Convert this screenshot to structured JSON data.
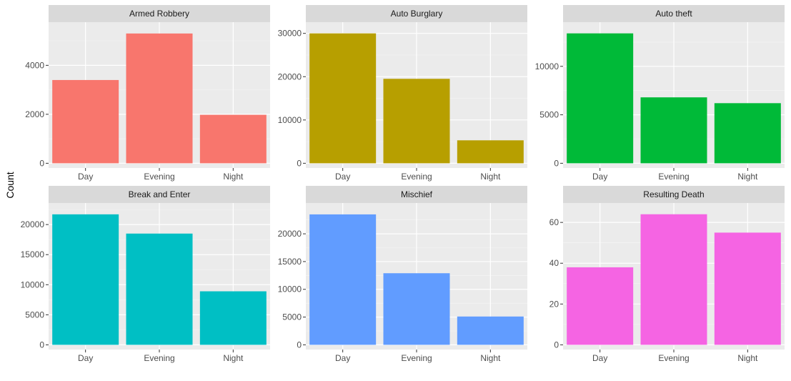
{
  "chart_data": {
    "type": "bar",
    "ylabel": "Count",
    "xlabel": "",
    "categories": [
      "Day",
      "Evening",
      "Night"
    ],
    "grid": true,
    "legend": "none",
    "panels": [
      {
        "title": "Armed Robbery",
        "values": [
          3400,
          5300,
          1980
        ],
        "ylim": [
          0,
          5570
        ],
        "yticks": [
          0,
          2000,
          4000
        ],
        "color": "#F8766D"
      },
      {
        "title": "Auto Burglary",
        "values": [
          30000,
          19500,
          5300
        ],
        "ylim": [
          0,
          31500
        ],
        "yticks": [
          0,
          10000,
          20000,
          30000
        ],
        "color": "#B79F00"
      },
      {
        "title": "Auto theft",
        "values": [
          13400,
          6800,
          6200
        ],
        "ylim": [
          0,
          14070
        ],
        "yticks": [
          0,
          5000,
          10000
        ],
        "color": "#00BA38"
      },
      {
        "title": "Break and Enter",
        "values": [
          21700,
          18500,
          8900
        ],
        "ylim": [
          0,
          22800
        ],
        "yticks": [
          0,
          5000,
          10000,
          15000,
          20000
        ],
        "color": "#00BFC4"
      },
      {
        "title": "Mischief",
        "values": [
          23500,
          12900,
          5100
        ],
        "ylim": [
          0,
          24700
        ],
        "yticks": [
          0,
          5000,
          10000,
          15000,
          20000
        ],
        "color": "#619CFF"
      },
      {
        "title": "Resulting Death",
        "values": [
          38,
          64,
          55
        ],
        "ylim": [
          0,
          67.2
        ],
        "yticks": [
          0,
          20,
          40,
          60
        ],
        "color": "#F564E3"
      }
    ]
  }
}
